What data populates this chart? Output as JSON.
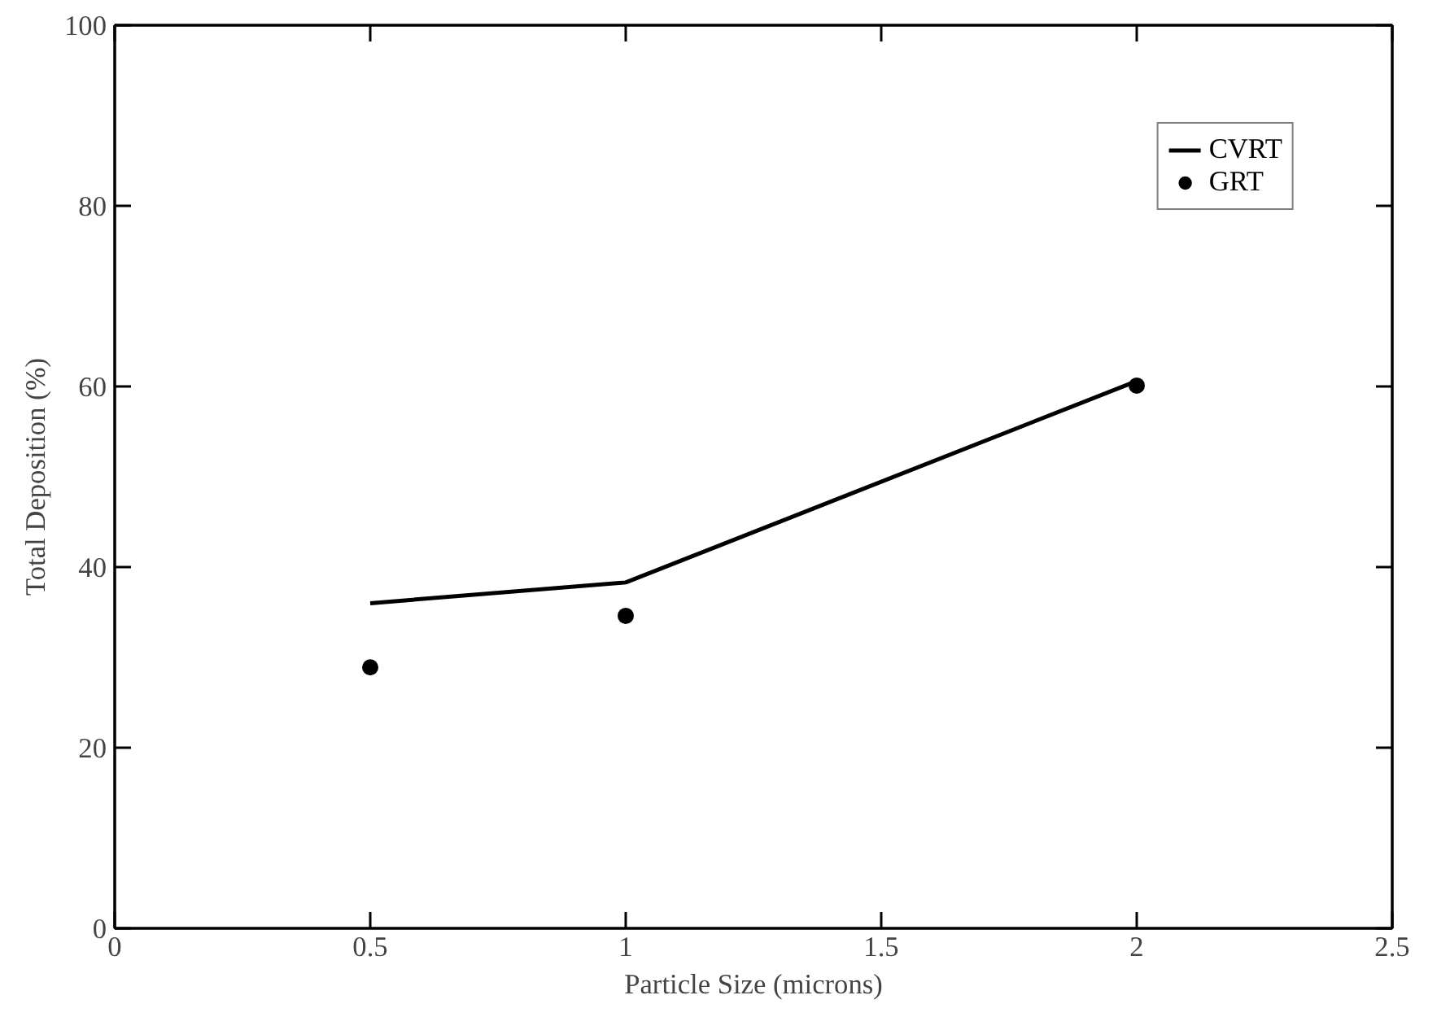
{
  "chart_data": {
    "type": "line",
    "xlabel": "Particle Size (microns)",
    "ylabel": "Total Deposition (%)",
    "xlim": [
      0,
      2.5
    ],
    "xticks": [
      0,
      0.5,
      1,
      1.5,
      2,
      2.5
    ],
    "ylim": [
      0,
      100
    ],
    "yticks": [
      0,
      20,
      40,
      60,
      80,
      100
    ],
    "grid": false,
    "legend": "top right",
    "series": [
      {
        "name": "CVRT",
        "color": "#000000",
        "marker": "none",
        "line_style": "solid",
        "x": [
          0.5,
          1,
          2
        ],
        "values": [
          36.0,
          38.3,
          60.6
        ]
      },
      {
        "name": "GRT",
        "type": "scatter",
        "color": "#000000",
        "marker": "circle",
        "x": [
          0.5,
          1,
          2
        ],
        "values": [
          28.9,
          34.6,
          60.1
        ]
      }
    ]
  }
}
